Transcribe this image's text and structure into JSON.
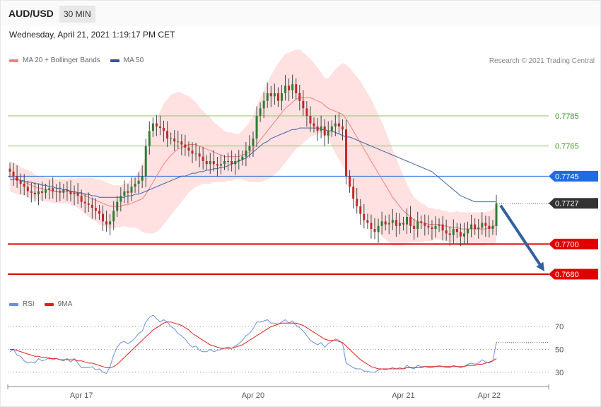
{
  "header": {
    "pair": "AUD/USD",
    "timeframe": "30 MIN",
    "datetime": "Wednesday, April 21, 2021 1:19:17 PM CET",
    "credit": "Research © 2021 Trading Central"
  },
  "colors": {
    "bull": "#2e7d32",
    "bear": "#c62828",
    "ma20": "#f08080",
    "band": "#ffd7d7",
    "ma50": "#3c5fa8",
    "support": "#e10000",
    "resistance": "#8ec36c",
    "pivot": "#1e6be3",
    "current": "#333333",
    "arrow": "#3060a0",
    "rsi": "#6a8fe0",
    "rsi_ma": "#e02020"
  },
  "chart_data": [
    {
      "type": "candlestick",
      "legend": [
        {
          "name": "MA 20 + Bollinger Bands",
          "color": "#f08080"
        },
        {
          "name": "MA 50",
          "color": "#2e5597"
        }
      ],
      "ylim": [
        0.7665,
        0.7815
      ],
      "x_labels": [
        "Apr 17",
        "Apr 20",
        "Apr 21",
        "Apr 22"
      ],
      "x_label_index": [
        19,
        67,
        109,
        133
      ],
      "levels": [
        {
          "value": 0.7785,
          "label": "0.7785",
          "kind": "resistance"
        },
        {
          "value": 0.7765,
          "label": "0.7765",
          "kind": "resistance"
        },
        {
          "value": 0.7745,
          "label": "0.7745",
          "kind": "pivot"
        },
        {
          "value": 0.7727,
          "label": "0.7727",
          "kind": "current"
        },
        {
          "value": 0.77,
          "label": "0.7700",
          "kind": "support"
        },
        {
          "value": 0.768,
          "label": "0.7680",
          "kind": "support"
        }
      ],
      "arrow": {
        "from": 0.7727,
        "to": 0.768
      },
      "close": [
        0.7748,
        0.7745,
        0.7742,
        0.774,
        0.7738,
        0.7735,
        0.7734,
        0.7733,
        0.7735,
        0.7734,
        0.7736,
        0.7737,
        0.7735,
        0.7735,
        0.7734,
        0.7736,
        0.7735,
        0.7733,
        0.7734,
        0.7732,
        0.7728,
        0.7727,
        0.7726,
        0.7724,
        0.7722,
        0.772,
        0.7715,
        0.7713,
        0.7715,
        0.7722,
        0.7728,
        0.7732,
        0.7735,
        0.7734,
        0.7738,
        0.774,
        0.7742,
        0.7745,
        0.7765,
        0.7775,
        0.778,
        0.7778,
        0.7777,
        0.7775,
        0.777,
        0.777,
        0.7768,
        0.7768,
        0.7766,
        0.7764,
        0.7762,
        0.776,
        0.776,
        0.7758,
        0.7755,
        0.7753,
        0.7755,
        0.7753,
        0.7752,
        0.7753,
        0.7755,
        0.7755,
        0.7753,
        0.7755,
        0.7756,
        0.7758,
        0.7762,
        0.7765,
        0.777,
        0.7785,
        0.779,
        0.7795,
        0.78,
        0.7798,
        0.78,
        0.7795,
        0.78,
        0.7805,
        0.7802,
        0.7806,
        0.78,
        0.7795,
        0.779,
        0.7785,
        0.778,
        0.7778,
        0.7775,
        0.7778,
        0.7772,
        0.7775,
        0.7778,
        0.778,
        0.7778,
        0.7776,
        0.7745,
        0.7738,
        0.773,
        0.7725,
        0.772,
        0.7716,
        0.7714,
        0.771,
        0.7708,
        0.7712,
        0.7715,
        0.7713,
        0.7714,
        0.7716,
        0.7712,
        0.7714,
        0.7713,
        0.7718,
        0.7712,
        0.771,
        0.7715,
        0.7714,
        0.7712,
        0.7711,
        0.771,
        0.7712,
        0.7713,
        0.7709,
        0.7707,
        0.7706,
        0.771,
        0.7708,
        0.7705,
        0.7707,
        0.771,
        0.7713,
        0.771,
        0.7711,
        0.7714,
        0.7712,
        0.771,
        0.7712,
        0.7727
      ],
      "ma20": [
        0.7745,
        0.7744,
        0.7743,
        0.7742,
        0.7741,
        0.774,
        0.7739,
        0.7738,
        0.7737,
        0.7737,
        0.7736,
        0.7736,
        0.7735,
        0.7735,
        0.7735,
        0.7735,
        0.7735,
        0.7735,
        0.7734,
        0.7734,
        0.7733,
        0.7732,
        0.7731,
        0.773,
        0.7729,
        0.7728,
        0.7727,
        0.7726,
        0.7725,
        0.7725,
        0.7725,
        0.7725,
        0.7726,
        0.7726,
        0.7727,
        0.7728,
        0.7729,
        0.773,
        0.7733,
        0.7737,
        0.7741,
        0.7745,
        0.7749,
        0.7753,
        0.7756,
        0.7759,
        0.7761,
        0.7763,
        0.7764,
        0.7765,
        0.7766,
        0.7766,
        0.7766,
        0.7765,
        0.7764,
        0.7763,
        0.7762,
        0.7761,
        0.776,
        0.7759,
        0.7758,
        0.7758,
        0.7758,
        0.7758,
        0.7758,
        0.7759,
        0.776,
        0.7761,
        0.7763,
        0.7766,
        0.7769,
        0.7772,
        0.7775,
        0.7778,
        0.7781,
        0.7784,
        0.7787,
        0.779,
        0.7792,
        0.7794,
        0.7796,
        0.7797,
        0.7797,
        0.7797,
        0.7797,
        0.7796,
        0.7795,
        0.7794,
        0.7792,
        0.779,
        0.7789,
        0.7788,
        0.7787,
        0.7786,
        0.7783,
        0.7779,
        0.7775,
        0.7771,
        0.7767,
        0.7763,
        0.7759,
        0.7755,
        0.7751,
        0.7747,
        0.7743,
        0.7739,
        0.7735,
        0.7731,
        0.7728,
        0.7725,
        0.7722,
        0.772,
        0.7718,
        0.7716,
        0.7715,
        0.7714,
        0.7714,
        0.7713,
        0.7713,
        0.7713,
        0.7713,
        0.7712,
        0.7712,
        0.7711,
        0.7711,
        0.7711,
        0.771,
        0.771,
        0.771,
        0.771,
        0.771,
        0.771,
        0.771,
        0.771,
        0.7711,
        0.7711,
        0.7713
      ],
      "bb_width": [
        0.001,
        0.001,
        0.001,
        0.0009,
        0.0009,
        0.0009,
        0.0009,
        0.0008,
        0.0008,
        0.0008,
        0.0008,
        0.0008,
        0.0008,
        0.0008,
        0.0008,
        0.0008,
        0.0008,
        0.0009,
        0.0009,
        0.001,
        0.0011,
        0.0012,
        0.0013,
        0.0014,
        0.0014,
        0.0015,
        0.0015,
        0.0015,
        0.0015,
        0.0014,
        0.0014,
        0.0014,
        0.0014,
        0.0015,
        0.0016,
        0.0017,
        0.0019,
        0.0022,
        0.0026,
        0.003,
        0.0034,
        0.0037,
        0.0039,
        0.004,
        0.004,
        0.004,
        0.0039,
        0.0038,
        0.0036,
        0.0034,
        0.0032,
        0.003,
        0.0028,
        0.0026,
        0.0024,
        0.0023,
        0.0022,
        0.002,
        0.0019,
        0.0018,
        0.0017,
        0.0016,
        0.0016,
        0.0015,
        0.0015,
        0.0016,
        0.0018,
        0.002,
        0.0022,
        0.0025,
        0.0028,
        0.003,
        0.0032,
        0.0034,
        0.0035,
        0.0036,
        0.0036,
        0.0036,
        0.0035,
        0.0034,
        0.0033,
        0.0032,
        0.003,
        0.0028,
        0.0026,
        0.0024,
        0.0022,
        0.002,
        0.0018,
        0.002,
        0.0024,
        0.0028,
        0.0031,
        0.0034,
        0.0036,
        0.0038,
        0.0039,
        0.004,
        0.0041,
        0.0041,
        0.0041,
        0.0041,
        0.004,
        0.0039,
        0.0038,
        0.0036,
        0.0034,
        0.0032,
        0.0029,
        0.0026,
        0.0023,
        0.002,
        0.0017,
        0.0015,
        0.0014,
        0.0013,
        0.0012,
        0.0011,
        0.0011,
        0.001,
        0.001,
        0.001,
        0.001,
        0.001,
        0.001,
        0.0011,
        0.0011,
        0.0011,
        0.0011,
        0.0011,
        0.0011,
        0.0011,
        0.0011,
        0.0011,
        0.0011,
        0.0012,
        0.0012
      ],
      "ma50": [
        0.7743,
        0.7743,
        0.7743,
        0.7742,
        0.7742,
        0.7741,
        0.7741,
        0.774,
        0.774,
        0.7739,
        0.7739,
        0.7738,
        0.7738,
        0.7737,
        0.7737,
        0.7736,
        0.7736,
        0.7735,
        0.7735,
        0.7734,
        0.7734,
        0.7733,
        0.7733,
        0.7732,
        0.7732,
        0.7731,
        0.7731,
        0.7731,
        0.7731,
        0.7731,
        0.7731,
        0.7731,
        0.7731,
        0.7732,
        0.7732,
        0.7733,
        0.7733,
        0.7734,
        0.7735,
        0.7736,
        0.7737,
        0.7738,
        0.7739,
        0.774,
        0.7741,
        0.7742,
        0.7743,
        0.7744,
        0.7745,
        0.7745,
        0.7746,
        0.7747,
        0.7747,
        0.7748,
        0.7748,
        0.7749,
        0.7749,
        0.775,
        0.775,
        0.7751,
        0.7751,
        0.7752,
        0.7753,
        0.7754,
        0.7755,
        0.7756,
        0.7757,
        0.7759,
        0.7761,
        0.7763,
        0.7765,
        0.7767,
        0.7768,
        0.777,
        0.7771,
        0.7772,
        0.7773,
        0.7774,
        0.7775,
        0.7776,
        0.7776,
        0.7777,
        0.7777,
        0.7777,
        0.7777,
        0.7777,
        0.7777,
        0.7776,
        0.7776,
        0.7775,
        0.7775,
        0.7774,
        0.7773,
        0.7772,
        0.7771,
        0.7771,
        0.777,
        0.7769,
        0.7768,
        0.7767,
        0.7766,
        0.7765,
        0.7764,
        0.7763,
        0.7762,
        0.7761,
        0.776,
        0.7759,
        0.7758,
        0.7757,
        0.7756,
        0.7755,
        0.7754,
        0.7753,
        0.7752,
        0.7751,
        0.775,
        0.7749,
        0.7748,
        0.7746,
        0.7744,
        0.7742,
        0.774,
        0.7738,
        0.7736,
        0.7734,
        0.7732,
        0.7731,
        0.773,
        0.7729,
        0.7728,
        0.7728,
        0.7728,
        0.7728,
        0.7728,
        0.7728,
        0.7728
      ]
    },
    {
      "type": "line",
      "legend": [
        {
          "name": "RSI",
          "color": "#6a8fe0"
        },
        {
          "name": "9MA",
          "color": "#e02020"
        }
      ],
      "ylim": [
        20,
        80
      ],
      "y_ticks": [
        70,
        50,
        30
      ],
      "rsi": [
        48,
        50,
        45,
        44,
        40,
        38,
        39,
        38,
        42,
        40,
        41,
        43,
        41,
        42,
        41,
        40,
        42,
        39,
        42,
        38,
        34,
        34,
        34,
        35,
        32,
        33,
        30,
        29,
        35,
        45,
        52,
        56,
        57,
        55,
        57,
        60,
        64,
        66,
        74,
        78,
        80,
        77,
        74,
        76,
        74,
        70,
        68,
        64,
        62,
        59,
        55,
        52,
        53,
        49,
        48,
        48,
        50,
        48,
        49,
        50,
        51,
        52,
        51,
        53,
        55,
        58,
        62,
        64,
        68,
        74,
        74,
        75,
        76,
        73,
        73,
        72,
        74,
        76,
        73,
        75,
        71,
        69,
        66,
        62,
        58,
        56,
        54,
        56,
        52,
        55,
        57,
        59,
        58,
        55,
        38,
        36,
        34,
        33,
        33,
        31,
        31,
        30,
        30,
        32,
        33,
        32,
        33,
        34,
        33,
        34,
        33,
        36,
        34,
        33,
        36,
        35,
        35,
        34,
        34,
        35,
        36,
        35,
        34,
        34,
        36,
        35,
        34,
        35,
        37,
        38,
        37,
        38,
        41,
        39,
        38,
        40,
        56
      ],
      "rsi_ma": [
        50,
        50,
        49,
        48,
        47,
        46,
        45,
        44,
        44,
        43,
        43,
        42,
        42,
        42,
        41,
        41,
        41,
        41,
        41,
        40,
        40,
        39,
        38,
        38,
        37,
        36,
        35,
        34,
        34,
        35,
        37,
        40,
        43,
        46,
        49,
        52,
        55,
        58,
        61,
        64,
        67,
        69,
        71,
        73,
        74,
        74,
        73,
        72,
        71,
        69,
        67,
        64,
        62,
        60,
        58,
        56,
        54,
        53,
        52,
        51,
        51,
        51,
        51,
        52,
        53,
        54,
        56,
        58,
        60,
        62,
        64,
        66,
        68,
        70,
        71,
        72,
        73,
        73,
        73,
        73,
        73,
        72,
        71,
        69,
        67,
        65,
        63,
        61,
        59,
        58,
        58,
        58,
        57,
        56,
        53,
        50,
        47,
        44,
        41,
        39,
        37,
        35,
        34,
        33,
        33,
        33,
        33,
        33,
        33,
        33,
        33,
        34,
        34,
        34,
        34,
        34,
        35,
        35,
        35,
        35,
        35,
        35,
        35,
        35,
        35,
        35,
        35,
        35,
        36,
        36,
        36,
        37,
        37,
        38,
        39,
        40,
        42
      ]
    }
  ]
}
